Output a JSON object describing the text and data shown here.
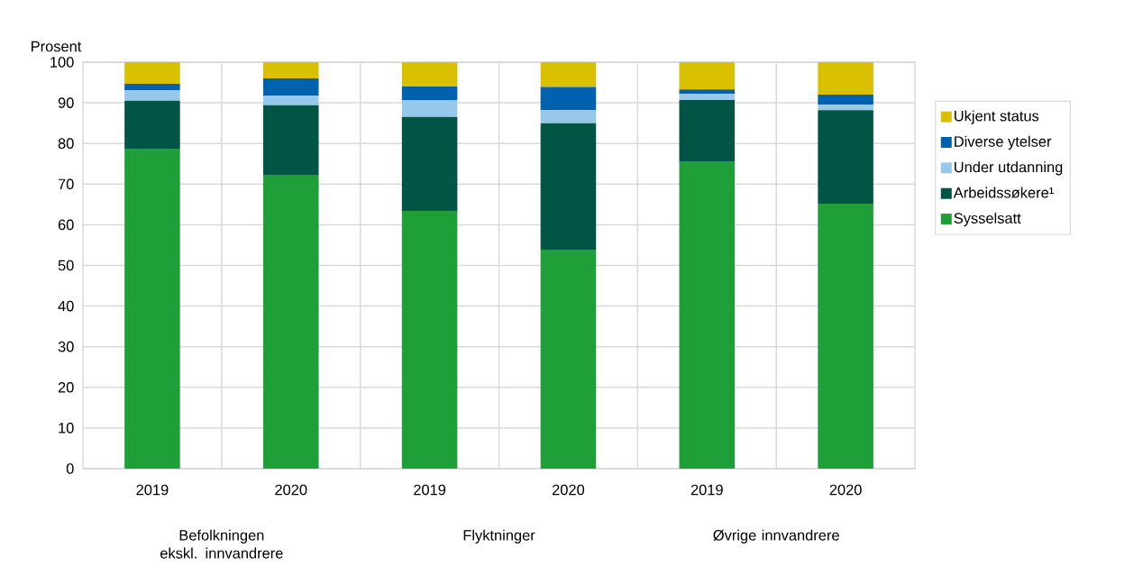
{
  "chart_data": {
    "type": "bar",
    "stacked": true,
    "ylabel": "Prosent",
    "categories": [
      "2019",
      "2020",
      "2019",
      "2020",
      "2019",
      "2020"
    ],
    "annotations": [
      "Befolkningen ekskl. innvandrere",
      "Flyktninger",
      "Øvrige innvandrere"
    ],
    "series": [
      {
        "name": "Sysselsatt",
        "color": "#1f9f37",
        "values": [
          78.7,
          72.1,
          63.4,
          53.9,
          75.6,
          65.2
        ]
      },
      {
        "name": "Arbeidssøkere¹",
        "color": "#005545",
        "values": [
          11.8,
          17.3,
          23.1,
          31.1,
          15.1,
          23.0
        ]
      },
      {
        "name": "Under utdanning",
        "color": "#96c8ec",
        "values": [
          2.6,
          2.4,
          4.2,
          3.2,
          1.5,
          1.4
        ]
      },
      {
        "name": "Diverse ytelser",
        "color": "#0062ae",
        "values": [
          1.6,
          4.2,
          3.3,
          5.7,
          1.1,
          2.4
        ]
      },
      {
        "name": "Ukjent status",
        "color": "#d9c000",
        "values": [
          5.3,
          4.0,
          6.0,
          6.1,
          6.7,
          8.0
        ]
      }
    ],
    "ylim": [
      0,
      100
    ],
    "yticks": [
      0,
      10,
      20,
      30,
      40,
      50,
      60,
      70,
      80,
      90,
      100
    ],
    "grid": true,
    "legend": "right"
  }
}
